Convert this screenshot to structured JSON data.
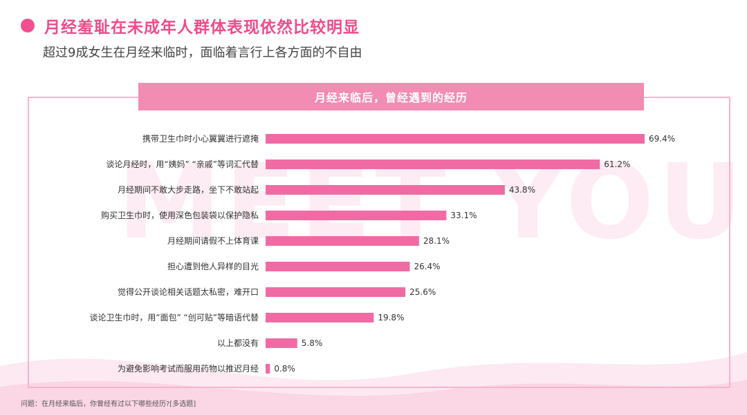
{
  "title": "月经羞耻在未成年人群体表现依然比较明显",
  "subtitle": "超过9成女生在月经来临时，面临着言行上各方面的不自由",
  "watermark": "MEET YOU",
  "footnote": "问题：在月经来临后，你曾经有过以下哪些经历?[多选题]",
  "colors": {
    "accent": "#f0508e",
    "bar": "#f06ba4",
    "header": "#f38cb2",
    "frame": "#f7b3cc"
  },
  "chart_data": {
    "type": "bar",
    "orientation": "horizontal",
    "title": "月经来临后，曾经遇到的经历",
    "categories": [
      "携带卫生巾时小心翼翼进行遮掩",
      "谈论月经时，用“姨妈” “亲戚”等词汇代替",
      "月经期间不敢大步走路，坐下不敢站起",
      "购买卫生巾时，使用深色包装袋以保护隐私",
      "月经期间请假不上体育课",
      "担心遭到他人异样的目光",
      "觉得公开谈论相关话题太私密，难开口",
      "谈论卫生巾时，用“面包” “创可贴”等暗语代替",
      "以上都没有",
      "为避免影响考试而服用药物以推迟月经"
    ],
    "values": [
      69.4,
      61.2,
      43.8,
      33.1,
      28.1,
      26.4,
      25.6,
      19.8,
      5.8,
      0.8
    ],
    "value_labels": [
      "69.4%",
      "61.2%",
      "43.8%",
      "33.1%",
      "28.1%",
      "26.4%",
      "25.6%",
      "19.8%",
      "5.8%",
      "0.8%"
    ],
    "xlim": [
      0,
      69.4
    ],
    "grid": false,
    "legend": "none"
  }
}
